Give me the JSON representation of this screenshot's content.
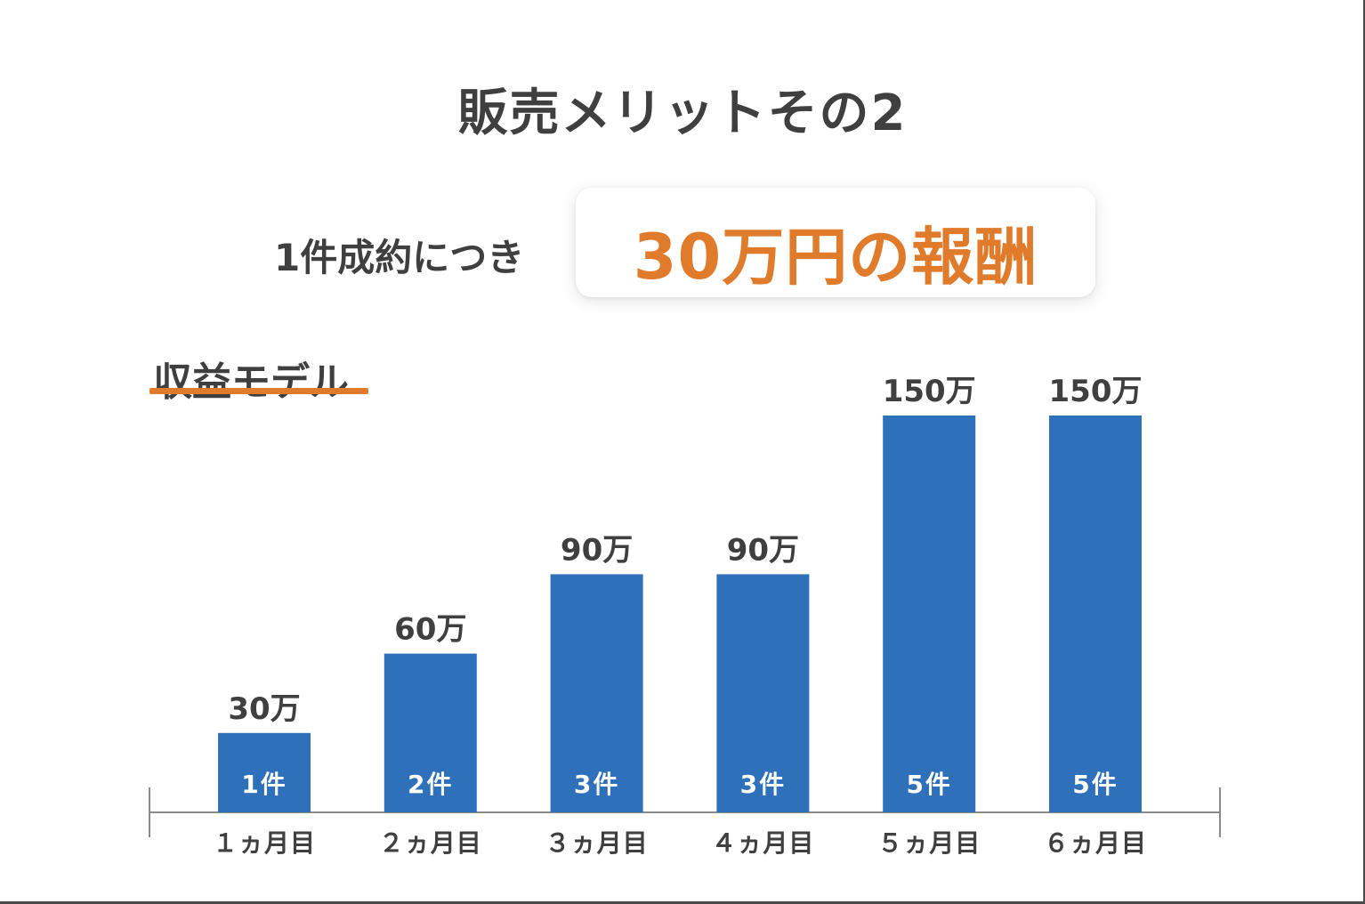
{
  "title": "販売メリットその2",
  "lead": "1件成約につき",
  "highlight": "30万円の報酬",
  "section_label": "収益モデル",
  "colors": {
    "bar": "#2f70bb",
    "accent": "#e07b2c",
    "text": "#3f3f3f",
    "axis": "#8a8a8a"
  },
  "chart_data": {
    "type": "bar",
    "categories": [
      "１ヵ月目",
      "２ヵ月目",
      "３ヵ月目",
      "４ヵ月目",
      "５ヵ月目",
      "６ヵ月目"
    ],
    "values": [
      30,
      60,
      90,
      90,
      150,
      150
    ],
    "value_labels": [
      "30万",
      "60万",
      "90万",
      "90万",
      "150万",
      "150万"
    ],
    "bar_labels": [
      "1件",
      "2件",
      "3件",
      "3件",
      "5件",
      "5件"
    ],
    "ylim": [
      0,
      150
    ],
    "grid": false
  }
}
